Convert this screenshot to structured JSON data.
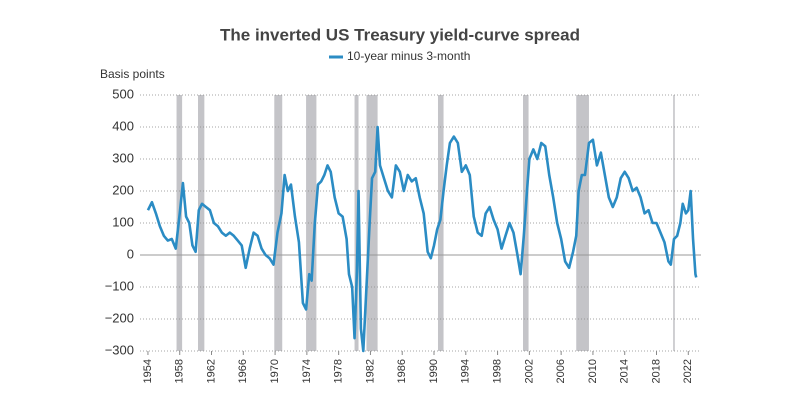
{
  "chart_data": {
    "type": "line",
    "title": "The inverted US Treasury yield-curve spread",
    "y_label": "Basis points",
    "xlim": [
      1953,
      2023.6
    ],
    "xticks": [
      1954,
      1958,
      1962,
      1966,
      1970,
      1974,
      1978,
      1982,
      1986,
      1990,
      1994,
      1998,
      2002,
      2006,
      2010,
      2014,
      2018,
      2022
    ],
    "ylim": [
      -300,
      500
    ],
    "yticks": [
      {
        "value": -300,
        "label": "−300"
      },
      {
        "value": -200,
        "label": "−200"
      },
      {
        "value": -100,
        "label": "−100"
      },
      0,
      100,
      200,
      300,
      400,
      500
    ],
    "grid": true,
    "recession_color": "#c4c4c8",
    "recessions": [
      [
        1957.6,
        1958.3
      ],
      [
        1960.3,
        1961.1
      ],
      [
        1969.9,
        1970.9
      ],
      [
        1973.9,
        1975.2
      ],
      [
        1980.0,
        1980.5
      ],
      [
        1981.5,
        1982.9
      ],
      [
        1990.5,
        1991.2
      ],
      [
        2001.2,
        2001.9
      ],
      [
        2007.9,
        2009.5
      ],
      [
        2020.1,
        2020.3
      ]
    ],
    "x": [
      1954.0,
      1954.5,
      1955,
      1955.5,
      1956,
      1956.5,
      1957,
      1957.5,
      1958,
      1958.4,
      1958.8,
      1959.2,
      1959.6,
      1960,
      1960.4,
      1960.8,
      1961.3,
      1961.8,
      1962.3,
      1962.8,
      1963.3,
      1963.8,
      1964.3,
      1964.8,
      1965.3,
      1965.8,
      1966.3,
      1966.8,
      1967.3,
      1967.8,
      1968.3,
      1968.8,
      1969.3,
      1969.8,
      1970.3,
      1970.8,
      1971.2,
      1971.6,
      1972,
      1972.5,
      1973,
      1973.5,
      1973.9,
      1974.3,
      1974.6,
      1975,
      1975.4,
      1975.8,
      1976.2,
      1976.6,
      1977,
      1977.5,
      1978,
      1978.5,
      1979,
      1979.3,
      1979.7,
      1980,
      1980.3,
      1980.5,
      1980.8,
      1981.1,
      1981.5,
      1981.9,
      1982.2,
      1982.6,
      1982.9,
      1983.2,
      1983.7,
      1984.2,
      1984.7,
      1985.2,
      1985.7,
      1986.2,
      1986.7,
      1987.2,
      1987.7,
      1988.2,
      1988.7,
      1989.2,
      1989.6,
      1990,
      1990.4,
      1990.8,
      1991.2,
      1991.6,
      1992,
      1992.5,
      1993,
      1993.5,
      1994,
      1994.5,
      1995,
      1995.5,
      1996,
      1996.5,
      1997,
      1997.5,
      1998,
      1998.5,
      1999,
      1999.5,
      2000,
      2000.5,
      2000.9,
      2001.3,
      2001.7,
      2002,
      2002.5,
      2003,
      2003.5,
      2004,
      2004.5,
      2005,
      2005.5,
      2006,
      2006.5,
      2007,
      2007.5,
      2007.9,
      2008.2,
      2008.6,
      2009,
      2009.5,
      2010,
      2010.5,
      2011,
      2011.5,
      2012,
      2012.5,
      2013,
      2013.5,
      2014,
      2014.5,
      2015,
      2015.5,
      2016,
      2016.5,
      2017,
      2017.5,
      2018,
      2018.5,
      2019,
      2019.5,
      2019.8,
      2020.2,
      2020.6,
      2021,
      2021.3,
      2021.7,
      2022,
      2022.3,
      2022.6,
      2022.9,
      2023
    ],
    "series": [
      {
        "name": "10-year minus 3-month",
        "color": "#2b8cc4",
        "values": [
          140,
          165,
          130,
          90,
          60,
          45,
          50,
          20,
          130,
          225,
          120,
          100,
          30,
          10,
          140,
          160,
          150,
          140,
          100,
          90,
          70,
          60,
          70,
          60,
          45,
          30,
          -40,
          20,
          70,
          60,
          20,
          0,
          -10,
          -30,
          70,
          130,
          250,
          200,
          220,
          120,
          40,
          -150,
          -170,
          -60,
          -80,
          100,
          220,
          230,
          250,
          280,
          260,
          180,
          130,
          120,
          50,
          -60,
          -100,
          -260,
          -50,
          200,
          -230,
          -300,
          -100,
          100,
          240,
          260,
          400,
          280,
          240,
          200,
          180,
          280,
          260,
          200,
          250,
          230,
          240,
          180,
          130,
          10,
          -10,
          30,
          80,
          110,
          200,
          280,
          350,
          370,
          350,
          260,
          280,
          250,
          120,
          70,
          60,
          130,
          150,
          110,
          80,
          20,
          60,
          100,
          70,
          0,
          -60,
          60,
          200,
          300,
          330,
          300,
          350,
          340,
          250,
          180,
          100,
          50,
          -20,
          -40,
          10,
          60,
          200,
          250,
          250,
          350,
          360,
          280,
          320,
          250,
          180,
          150,
          180,
          240,
          260,
          240,
          200,
          210,
          180,
          130,
          140,
          100,
          100,
          70,
          40,
          -20,
          -30,
          50,
          60,
          100,
          160,
          130,
          140,
          200,
          50,
          -60,
          -70
        ]
      }
    ]
  }
}
